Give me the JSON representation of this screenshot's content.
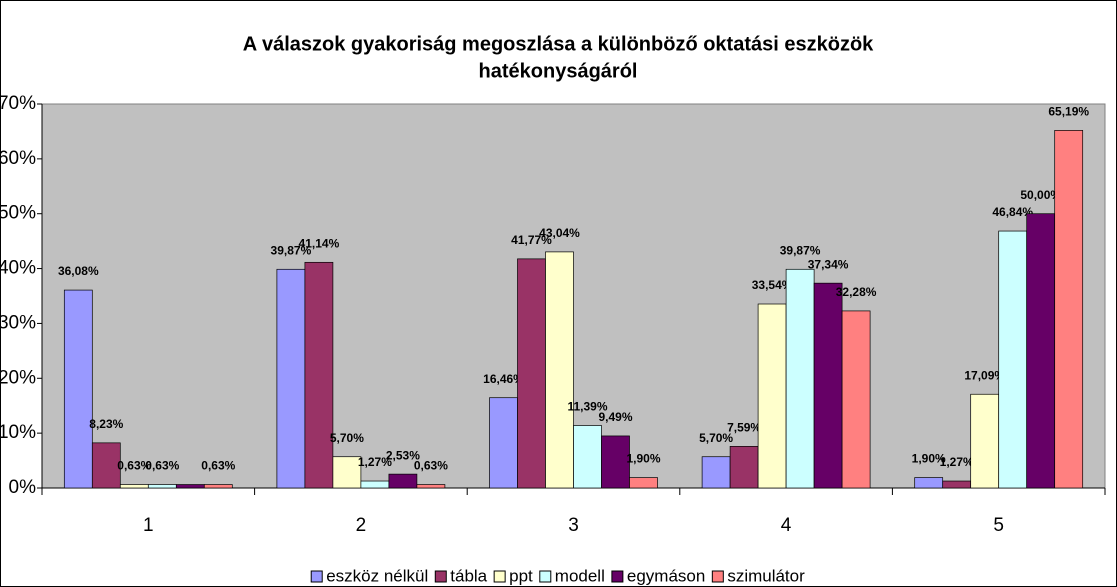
{
  "chart_data": {
    "type": "bar",
    "title": [
      "A válaszok gyakoriság megoszlása a különböző oktatási eszközök",
      "hatékonyságáról"
    ],
    "categories": [
      "1",
      "2",
      "3",
      "4",
      "5"
    ],
    "series": [
      {
        "name": "eszköz nélkül",
        "color": "#9999ff",
        "values": [
          36.08,
          39.87,
          16.46,
          5.7,
          1.9
        ],
        "value_labels": [
          "36,08%",
          "39,87%",
          "16,46%",
          "5,70%",
          "1,90%"
        ]
      },
      {
        "name": "tábla",
        "color": "#993366",
        "values": [
          8.23,
          41.14,
          41.77,
          7.59,
          1.27
        ],
        "value_labels": [
          "8,23%",
          "41,14%",
          "41,77%",
          "7,59%",
          "1,27%"
        ]
      },
      {
        "name": "ppt",
        "color": "#ffffcc",
        "values": [
          0.63,
          5.7,
          43.04,
          33.54,
          17.09
        ],
        "value_labels": [
          "0,63%",
          "5,70%",
          "43,04%",
          "33,54%",
          "17,09%"
        ]
      },
      {
        "name": "modell",
        "color": "#ccffff",
        "values": [
          0.63,
          1.27,
          11.39,
          39.87,
          46.84
        ],
        "value_labels": [
          "0,63%",
          "1,27%",
          "11,39%",
          "39,87%",
          "46,84%"
        ]
      },
      {
        "name": "egymáson",
        "color": "#660066",
        "values": [
          0.63,
          2.53,
          9.49,
          37.34,
          50.0
        ],
        "value_labels": [
          null,
          "2,53%",
          "9,49%",
          "37,34%",
          "50,00%"
        ]
      },
      {
        "name": "szimulátor",
        "color": "#ff8080",
        "values": [
          0.63,
          0.63,
          1.9,
          32.28,
          65.19
        ],
        "value_labels": [
          "0,63%",
          "0,63%",
          "1,90%",
          "32,28%",
          "65,19%"
        ]
      }
    ],
    "ylim": [
      0,
      70
    ],
    "yticks": [
      {
        "value": 0,
        "label": "0%"
      },
      {
        "value": 10,
        "label": "10%"
      },
      {
        "value": 20,
        "label": "20%"
      },
      {
        "value": 30,
        "label": "30%"
      },
      {
        "value": 40,
        "label": "40%"
      },
      {
        "value": 50,
        "label": "50%"
      },
      {
        "value": 60,
        "label": "60%"
      },
      {
        "value": 70,
        "label": "70%"
      }
    ],
    "grid": false,
    "background": "#c0c0c0",
    "legend": "bottom"
  }
}
